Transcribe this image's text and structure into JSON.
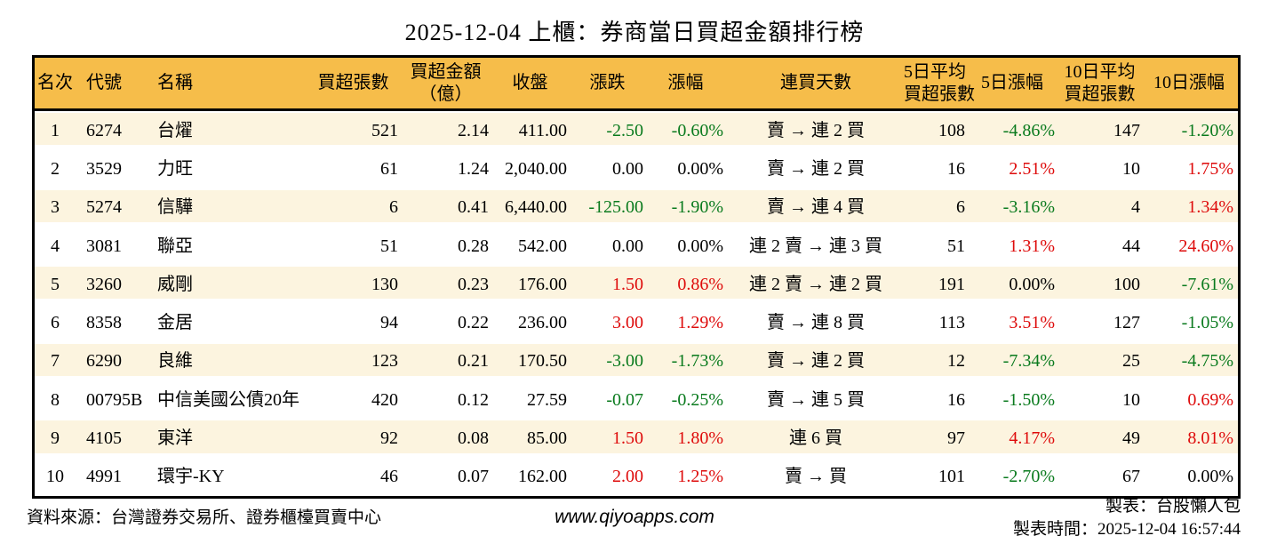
{
  "title": "2025-12-04 上櫃：券商當日買超金額排行榜",
  "colors": {
    "header_bg": "#F6BD4A",
    "stripe_bg": "#FCF4DF",
    "up": "#DE0B0B",
    "down": "#097A1D",
    "text": "#000000",
    "border": "#000000"
  },
  "chart_data": {
    "type": "table",
    "title": "2025-12-04 上櫃：券商當日買超金額排行榜",
    "columns": [
      {
        "id": "rank",
        "label": "名次",
        "align": "center"
      },
      {
        "id": "code",
        "label": "代號",
        "align": "left"
      },
      {
        "id": "name",
        "label": "名稱",
        "align": "left"
      },
      {
        "id": "net-buy-volume",
        "label": "買超張數",
        "align": "right"
      },
      {
        "id": "net-buy-amount",
        "label": "買超金額\n（億）",
        "align": "right"
      },
      {
        "id": "close",
        "label": "收盤",
        "align": "right"
      },
      {
        "id": "change",
        "label": "漲跌",
        "align": "right"
      },
      {
        "id": "change-pct",
        "label": "漲幅",
        "align": "right"
      },
      {
        "id": "streak",
        "label": "連買天數",
        "align": "center"
      },
      {
        "id": "avg5-volume",
        "label": "5日平均\n買超張數",
        "align": "right"
      },
      {
        "id": "pct5",
        "label": "5日漲幅",
        "align": "right"
      },
      {
        "id": "avg10-volume",
        "label": "10日平均\n買超張數",
        "align": "right"
      },
      {
        "id": "pct10",
        "label": "10日漲幅",
        "align": "right"
      }
    ],
    "rows": [
      [
        "1",
        "6274",
        "台燿",
        "521",
        "2.14",
        "411.00",
        {
          "v": "-2.50",
          "tone": "down"
        },
        {
          "v": "-0.60%",
          "tone": "down"
        },
        "賣 → 連 2 買",
        "108",
        {
          "v": "-4.86%",
          "tone": "down"
        },
        "147",
        {
          "v": "-1.20%",
          "tone": "down"
        }
      ],
      [
        "2",
        "3529",
        "力旺",
        "61",
        "1.24",
        "2,040.00",
        "0.00",
        "0.00%",
        "賣 → 連 2 買",
        "16",
        {
          "v": "2.51%",
          "tone": "up"
        },
        "10",
        {
          "v": "1.75%",
          "tone": "up"
        }
      ],
      [
        "3",
        "5274",
        "信驊",
        "6",
        "0.41",
        "6,440.00",
        {
          "v": "-125.00",
          "tone": "down"
        },
        {
          "v": "-1.90%",
          "tone": "down"
        },
        "賣 → 連 4 買",
        "6",
        {
          "v": "-3.16%",
          "tone": "down"
        },
        "4",
        {
          "v": "1.34%",
          "tone": "up"
        }
      ],
      [
        "4",
        "3081",
        "聯亞",
        "51",
        "0.28",
        "542.00",
        "0.00",
        "0.00%",
        "連 2 賣 → 連 3 買",
        "51",
        {
          "v": "1.31%",
          "tone": "up"
        },
        "44",
        {
          "v": "24.60%",
          "tone": "up"
        }
      ],
      [
        "5",
        "3260",
        "威剛",
        "130",
        "0.23",
        "176.00",
        {
          "v": "1.50",
          "tone": "up"
        },
        {
          "v": "0.86%",
          "tone": "up"
        },
        "連 2 賣 → 連 2 買",
        "191",
        "0.00%",
        "100",
        {
          "v": "-7.61%",
          "tone": "down"
        }
      ],
      [
        "6",
        "8358",
        "金居",
        "94",
        "0.22",
        "236.00",
        {
          "v": "3.00",
          "tone": "up"
        },
        {
          "v": "1.29%",
          "tone": "up"
        },
        "賣 → 連 8 買",
        "113",
        {
          "v": "3.51%",
          "tone": "up"
        },
        "127",
        {
          "v": "-1.05%",
          "tone": "down"
        }
      ],
      [
        "7",
        "6290",
        "良維",
        "123",
        "0.21",
        "170.50",
        {
          "v": "-3.00",
          "tone": "down"
        },
        {
          "v": "-1.73%",
          "tone": "down"
        },
        "賣 → 連 2 買",
        "12",
        {
          "v": "-7.34%",
          "tone": "down"
        },
        "25",
        {
          "v": "-4.75%",
          "tone": "down"
        }
      ],
      [
        "8",
        "00795B",
        "中信美國公債20年",
        "420",
        "0.12",
        "27.59",
        {
          "v": "-0.07",
          "tone": "down"
        },
        {
          "v": "-0.25%",
          "tone": "down"
        },
        "賣 → 連 5 買",
        "16",
        {
          "v": "-1.50%",
          "tone": "down"
        },
        "10",
        {
          "v": "0.69%",
          "tone": "up"
        }
      ],
      [
        "9",
        "4105",
        "東洋",
        "92",
        "0.08",
        "85.00",
        {
          "v": "1.50",
          "tone": "up"
        },
        {
          "v": "1.80%",
          "tone": "up"
        },
        "連 6 買",
        "97",
        {
          "v": "4.17%",
          "tone": "up"
        },
        "49",
        {
          "v": "8.01%",
          "tone": "up"
        }
      ],
      [
        "10",
        "4991",
        "環宇-KY",
        "46",
        "0.07",
        "162.00",
        {
          "v": "2.00",
          "tone": "up"
        },
        {
          "v": "1.25%",
          "tone": "up"
        },
        "賣 → 買",
        "101",
        {
          "v": "-2.70%",
          "tone": "down"
        },
        "67",
        "0.00%"
      ]
    ]
  },
  "footer": {
    "source": "資料來源：台灣證券交易所、證券櫃檯買賣中心",
    "website": "www.qiyoapps.com",
    "author": "製表：台股懶人包",
    "generated": "製表時間：2025-12-04 16:57:44"
  }
}
